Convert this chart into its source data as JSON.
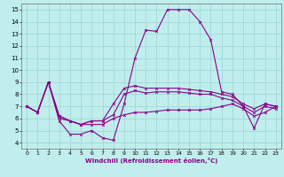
{
  "xlabel": "Windchill (Refroidissement éolien,°C)",
  "background_color": "#c0eeed",
  "grid_color": "#a0d8d8",
  "line_color": "#880088",
  "xlim": [
    -0.5,
    23.5
  ],
  "ylim": [
    3.5,
    15.5
  ],
  "xticks": [
    0,
    1,
    2,
    3,
    4,
    5,
    6,
    7,
    8,
    9,
    10,
    11,
    12,
    13,
    14,
    15,
    16,
    17,
    18,
    19,
    20,
    21,
    22,
    23
  ],
  "yticks": [
    4,
    5,
    6,
    7,
    8,
    9,
    10,
    11,
    12,
    13,
    14,
    15
  ],
  "lines": [
    [
      7.0,
      6.5,
      9.0,
      5.8,
      4.7,
      4.7,
      5.0,
      4.4,
      4.2,
      7.2,
      11.0,
      13.3,
      13.2,
      15.0,
      15.0,
      15.0,
      14.0,
      12.5,
      8.2,
      8.0,
      7.0,
      5.2,
      7.2,
      7.0
    ],
    [
      7.0,
      6.5,
      9.0,
      6.0,
      5.8,
      5.5,
      5.8,
      5.8,
      7.2,
      8.5,
      8.7,
      8.5,
      8.5,
      8.5,
      8.5,
      8.4,
      8.3,
      8.2,
      8.0,
      7.8,
      7.2,
      6.8,
      7.2,
      7.0
    ],
    [
      7.0,
      6.5,
      9.0,
      6.2,
      5.8,
      5.5,
      5.8,
      5.8,
      6.3,
      8.0,
      8.3,
      8.1,
      8.2,
      8.2,
      8.2,
      8.1,
      8.0,
      8.0,
      7.7,
      7.5,
      7.0,
      6.5,
      7.0,
      6.8
    ],
    [
      7.0,
      6.5,
      9.0,
      6.2,
      5.8,
      5.5,
      5.5,
      5.5,
      6.0,
      6.3,
      6.5,
      6.5,
      6.6,
      6.7,
      6.7,
      6.7,
      6.7,
      6.8,
      7.0,
      7.2,
      6.8,
      6.2,
      6.5,
      7.0
    ]
  ],
  "figsize": [
    3.2,
    2.0
  ],
  "dpi": 100
}
